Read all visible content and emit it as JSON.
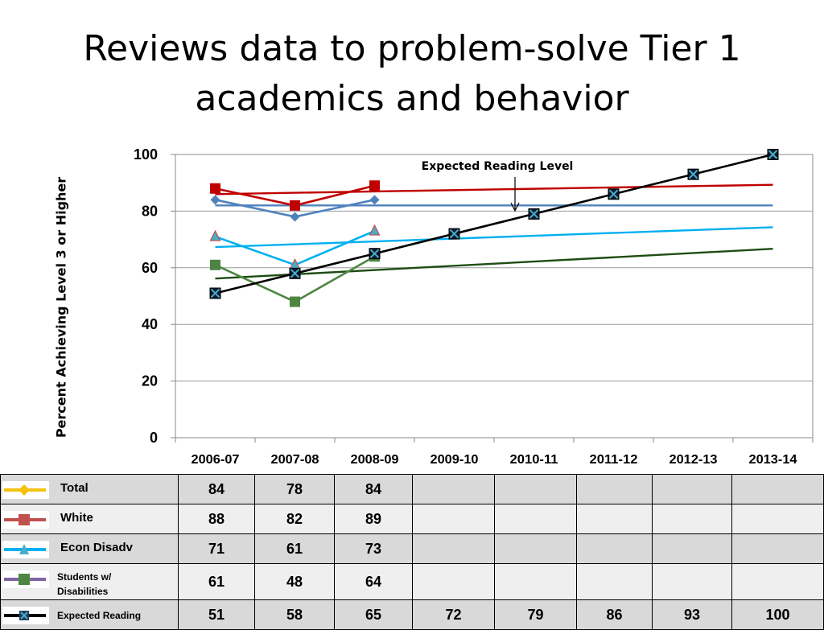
{
  "title": "Reviews data to problem-solve Tier 1 academics and behavior",
  "chart_data": {
    "type": "line",
    "ylabel": "Percent Achieving Level 3 or Higher",
    "ylim": [
      0,
      100
    ],
    "yticks": [
      0,
      20,
      40,
      60,
      80,
      100
    ],
    "grid": "horizontal",
    "categories": [
      "2006-07",
      "2007-08",
      "2008-09",
      "2009-10",
      "2010-11",
      "2011-12",
      "2012-13",
      "2013-14"
    ],
    "annotation": "Expected Reading Level",
    "series": [
      {
        "name": "Total",
        "values": [
          84,
          78,
          84,
          null,
          null,
          null,
          null,
          null
        ],
        "color": "#4f81bd",
        "marker": "diamond",
        "trendline": [
          82,
          82
        ]
      },
      {
        "name": "White",
        "values": [
          88,
          82,
          89,
          null,
          null,
          null,
          null,
          null
        ],
        "color": "#c00000",
        "marker": "square",
        "trendline": [
          86,
          89.3
        ]
      },
      {
        "name": "Econ Disadv",
        "values": [
          71,
          61,
          73,
          null,
          null,
          null,
          null,
          null
        ],
        "color": "#00b0f0",
        "marker": "triangle",
        "trendline": [
          67.3,
          74.3
        ]
      },
      {
        "name": "Students  w/ Disabilities",
        "values": [
          61,
          48,
          64,
          null,
          null,
          null,
          null,
          null
        ],
        "color": "#4e8542",
        "marker": "square",
        "trendline": [
          56.2,
          66.7
        ]
      },
      {
        "name": "Expected Reading",
        "values": [
          51,
          58,
          65,
          72,
          79,
          86,
          93,
          100
        ],
        "color": "#000000",
        "marker": "xsquare",
        "trendline": null
      }
    ]
  },
  "legend_table": {
    "swatch_colors": [
      "#f4c20d",
      "#c0504d",
      "#00b0f0",
      "#8064a2",
      "#000000"
    ],
    "swatch_marker_colors": [
      "#f4c20d",
      "#c0504d",
      "#4bacc6",
      "#4e8542",
      "#1f3a5f"
    ]
  }
}
